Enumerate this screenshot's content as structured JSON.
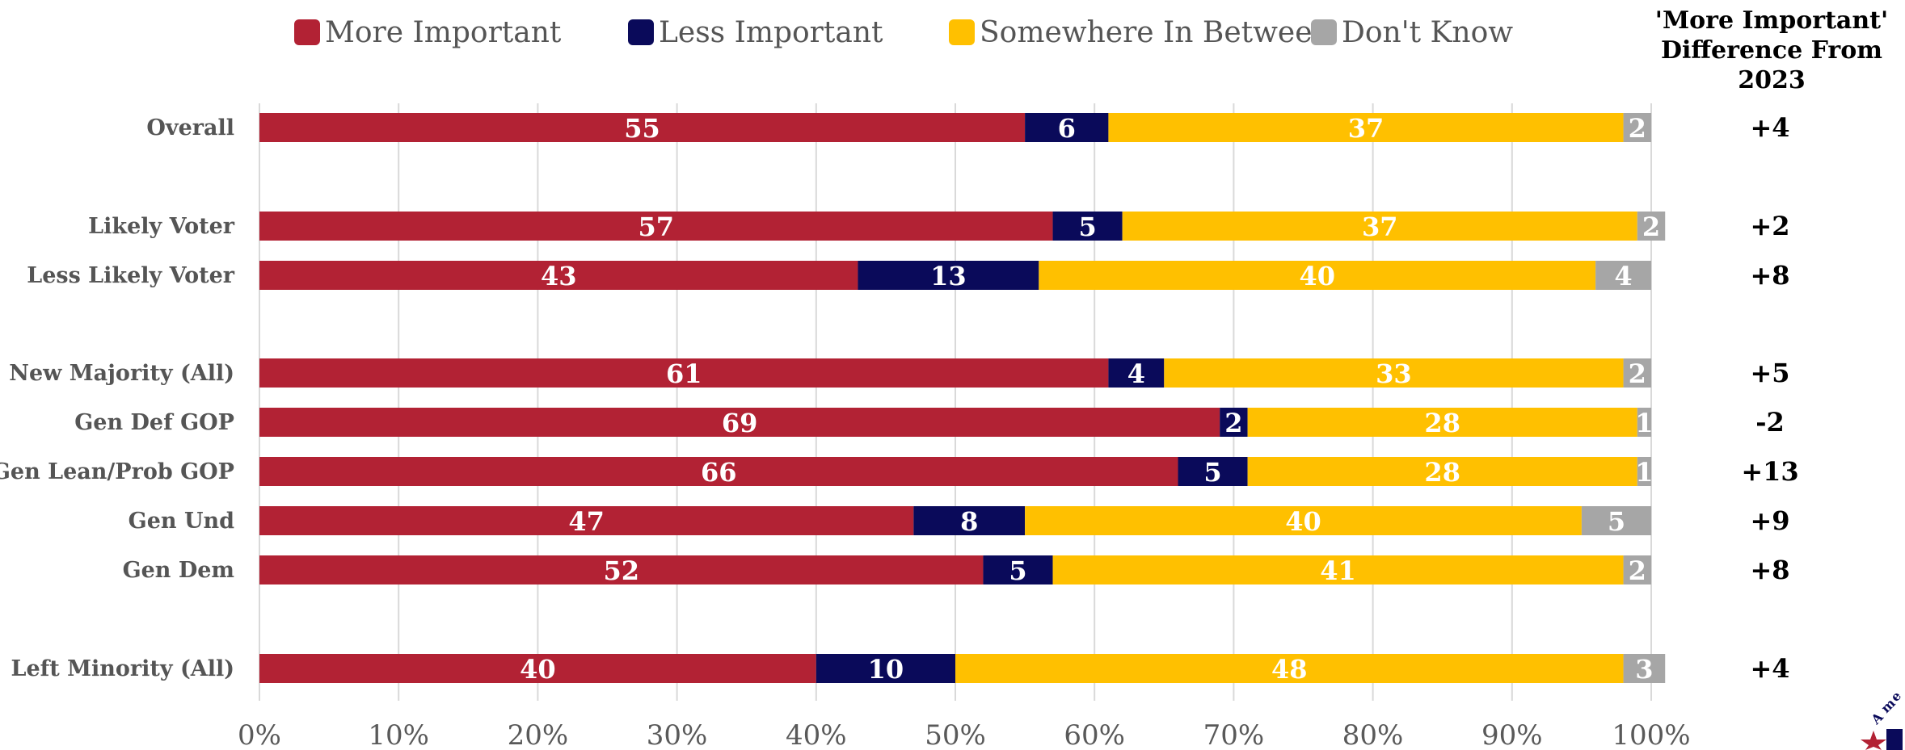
{
  "diff_header": [
    "'More Important'",
    "Difference From",
    "2023"
  ],
  "chart_data": {
    "type": "bar",
    "orientation": "horizontal",
    "stacked": true,
    "xlim": [
      0,
      100
    ],
    "xticks": [
      "0%",
      "10%",
      "20%",
      "30%",
      "40%",
      "50%",
      "60%",
      "70%",
      "80%",
      "90%",
      "100%"
    ],
    "grid": true,
    "legend_position": "top",
    "categories": [
      "Overall",
      "Likely Voter",
      "Less Likely Voter",
      "New Majority (All)",
      "Gen Def GOP",
      "Gen Lean/Prob GOP",
      "Gen Und",
      "Gen Dem",
      "Left Minority (All)"
    ],
    "series": [
      {
        "name": "More Important",
        "color": "#B22234",
        "values": [
          55,
          57,
          43,
          61,
          69,
          66,
          47,
          52,
          40
        ]
      },
      {
        "name": "Less Important",
        "color": "#0A0A5A",
        "values": [
          6,
          5,
          13,
          4,
          2,
          5,
          8,
          5,
          10
        ]
      },
      {
        "name": "Somewhere In Between",
        "color": "#FFC000",
        "values": [
          37,
          37,
          40,
          33,
          28,
          28,
          40,
          41,
          48
        ]
      },
      {
        "name": "Don't Know",
        "color": "#A6A6A6",
        "values": [
          2,
          2,
          4,
          2,
          1,
          1,
          5,
          2,
          3
        ]
      }
    ],
    "difference_from_2023": [
      "+4",
      "+2",
      "+8",
      "+5",
      "-2",
      "+13",
      "+9",
      "+8",
      "+4"
    ]
  }
}
